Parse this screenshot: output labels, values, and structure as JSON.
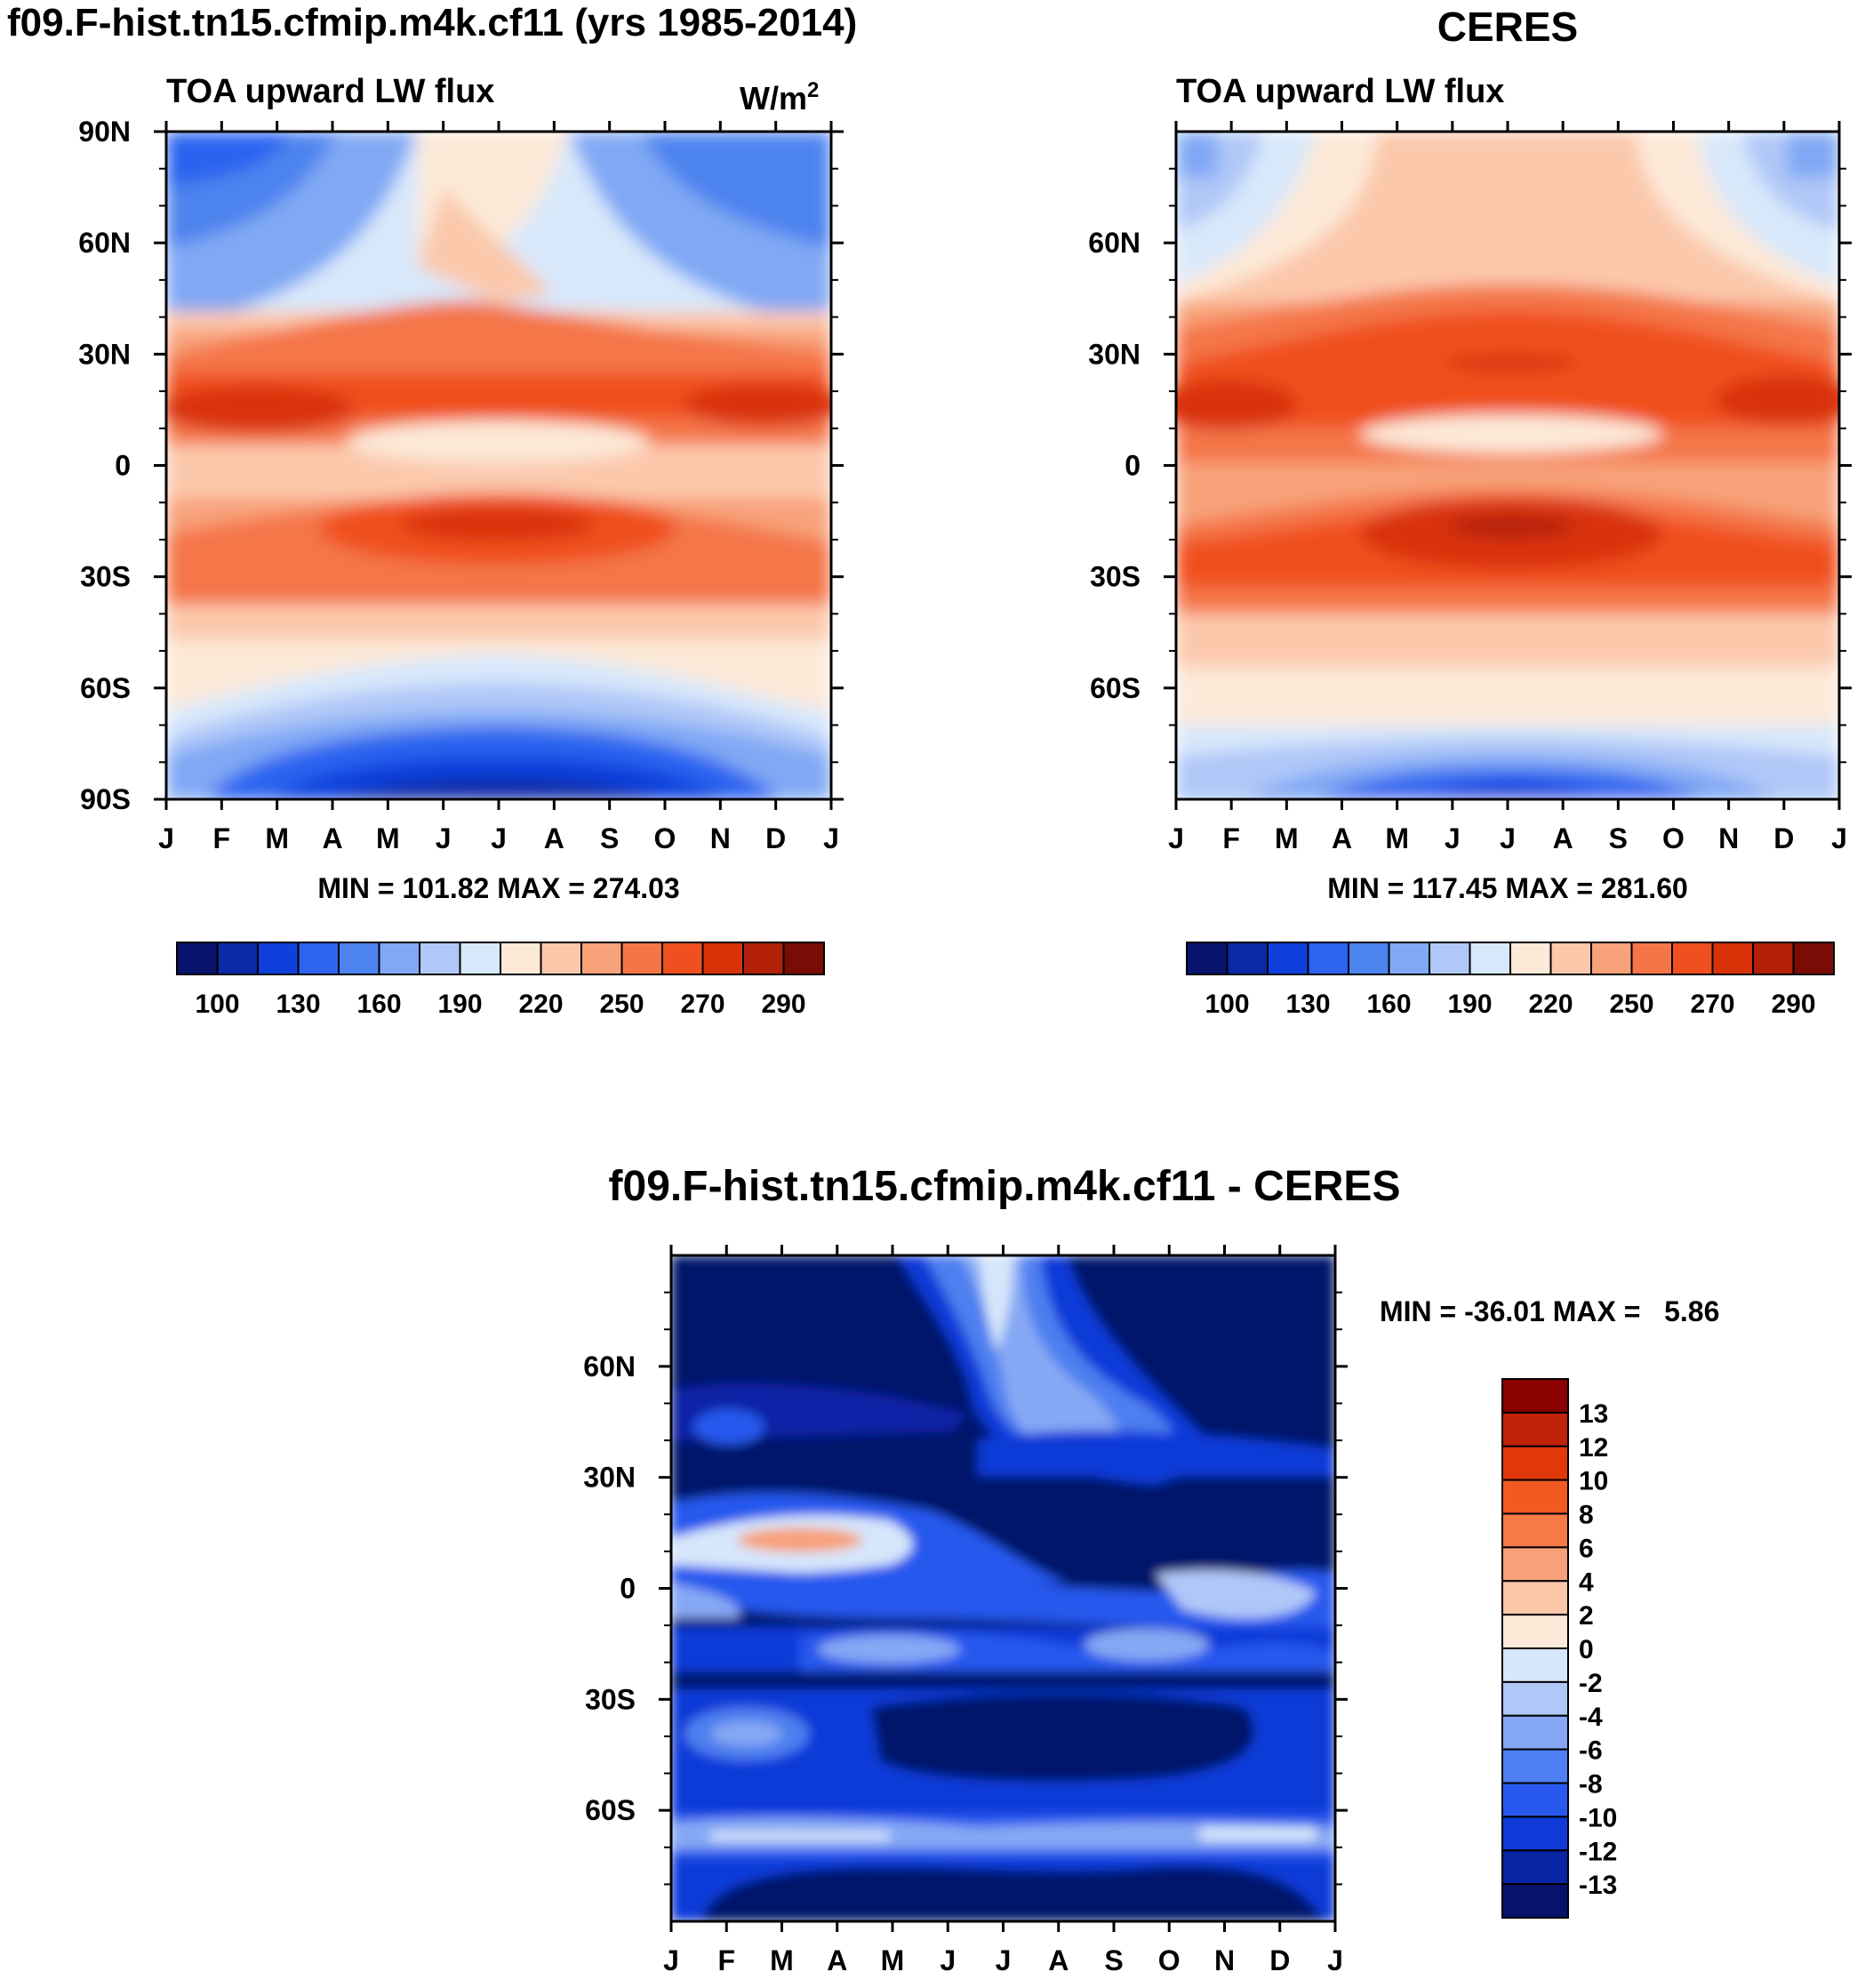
{
  "chart_data": [
    {
      "type": "heatmap",
      "panel": "model",
      "title": "f09.F-hist.tn15.cfmip.m4k.cf11 (yrs 1985-2014)",
      "subtitle_left": "TOA upward LW flux",
      "units_base": "W/m",
      "units_exp": "2",
      "xlabel": "",
      "ylabel": "",
      "x_ticks": [
        "J",
        "F",
        "M",
        "A",
        "M",
        "J",
        "J",
        "A",
        "S",
        "O",
        "N",
        "D",
        "J"
      ],
      "y_ticks": [
        "90N",
        "60N",
        "30N",
        "0",
        "30S",
        "60S",
        "90S"
      ],
      "ylim": [
        -90,
        90
      ],
      "stats_label": "MIN = 101.82 MAX = 274.03",
      "min": 101.82,
      "max": 274.03,
      "colorbar_labels": [
        "100",
        "130",
        "160",
        "190",
        "220",
        "250",
        "270",
        "290"
      ],
      "colorbar_colors": [
        "#08146b",
        "#0a2aa6",
        "#1040dc",
        "#2c64f0",
        "#4d83ef",
        "#80a8f4",
        "#b0c8f8",
        "#d8e8fb",
        "#fde9d8",
        "#fbc8ac",
        "#f8a27a",
        "#f47648",
        "#f04f1f",
        "#d93208",
        "#b22008",
        "#7a0c06"
      ]
    },
    {
      "type": "heatmap",
      "panel": "obs",
      "title": "CERES",
      "subtitle_left": "TOA upward LW flux",
      "x_ticks": [
        "J",
        "F",
        "M",
        "A",
        "M",
        "J",
        "J",
        "A",
        "S",
        "O",
        "N",
        "D",
        "J"
      ],
      "y_ticks": [
        "60N",
        "30N",
        "0",
        "30S",
        "60S"
      ],
      "ylim": [
        -90,
        90
      ],
      "stats_label": "MIN = 117.45 MAX = 281.60",
      "min": 117.45,
      "max": 281.6,
      "colorbar_labels": [
        "100",
        "130",
        "160",
        "190",
        "220",
        "250",
        "270",
        "290"
      ],
      "colorbar_colors": [
        "#08146b",
        "#0a2aa6",
        "#1040dc",
        "#2c64f0",
        "#4d83ef",
        "#80a8f4",
        "#b0c8f8",
        "#d8e8fb",
        "#fde9d8",
        "#fbc8ac",
        "#f8a27a",
        "#f47648",
        "#f04f1f",
        "#d93208",
        "#b22008",
        "#7a0c06"
      ]
    },
    {
      "type": "heatmap",
      "panel": "diff",
      "title": "f09.F-hist.tn15.cfmip.m4k.cf11 - CERES",
      "x_ticks": [
        "J",
        "F",
        "M",
        "A",
        "M",
        "J",
        "J",
        "A",
        "S",
        "O",
        "N",
        "D",
        "J"
      ],
      "y_ticks": [
        "60N",
        "30N",
        "0",
        "30S",
        "60S"
      ],
      "ylim": [
        -90,
        90
      ],
      "stats_label": "MIN = -36.01 MAX =   5.86",
      "min": -36.01,
      "max": 5.86,
      "colorbar_labels": [
        "13",
        "12",
        "10",
        "8",
        "6",
        "4",
        "2",
        "0",
        "-2",
        "-4",
        "-6",
        "-8",
        "-10",
        "-12",
        "-13"
      ],
      "colorbar_colors": [
        "#8b0000",
        "#c0220a",
        "#e03808",
        "#f25a22",
        "#f47a48",
        "#f8a07a",
        "#fbc6a8",
        "#fde9d8",
        "#d6e6fb",
        "#b0c8f8",
        "#86a8f4",
        "#4d7ff0",
        "#2858ee",
        "#0f3ad8",
        "#0a24a6",
        "#06126b"
      ]
    }
  ]
}
